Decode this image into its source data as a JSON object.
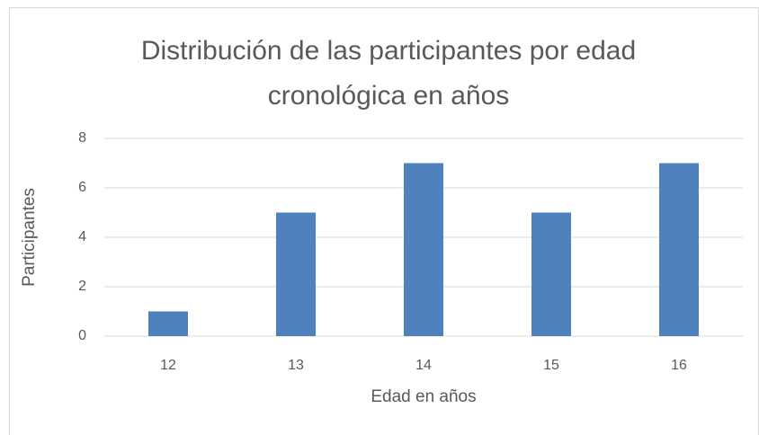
{
  "chart_data": {
    "type": "bar",
    "title": [
      "Distribución de las participantes por edad",
      "cronológica en años"
    ],
    "x_label": "Edad en años",
    "y_label": "Participantes",
    "categories": [
      "12",
      "13",
      "14",
      "15",
      "16"
    ],
    "values": [
      1,
      5,
      7,
      5,
      7
    ],
    "color": "#4f81bd",
    "ylim": [
      0,
      8
    ],
    "yticks": [
      0,
      2,
      4,
      6,
      8
    ],
    "grid": true
  }
}
